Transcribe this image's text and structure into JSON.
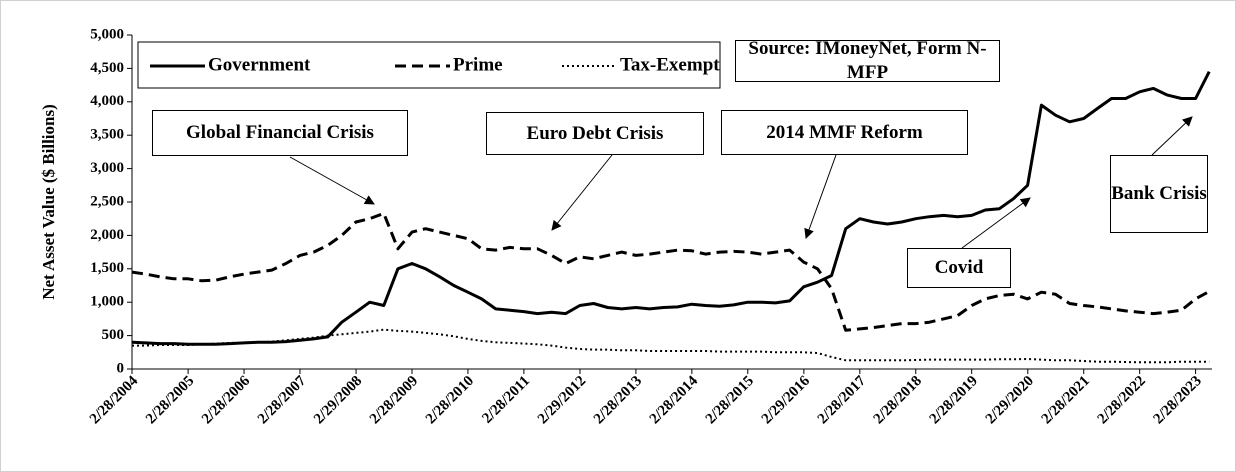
{
  "chart_data": {
    "type": "line",
    "y_label": "Net Asset Value ($ Billions)",
    "source": "Source: IMoneyNet, Form N-MFP",
    "annotations": [
      "Global Financial Crisis",
      "Euro Debt Crisis",
      "2014 MMF Reform",
      "Covid",
      "Bank Crisis"
    ],
    "x": [
      "2004-02",
      "2004-05",
      "2004-08",
      "2004-11",
      "2005-02",
      "2005-05",
      "2005-08",
      "2005-11",
      "2006-02",
      "2006-05",
      "2006-08",
      "2006-11",
      "2007-02",
      "2007-05",
      "2007-08",
      "2007-11",
      "2008-02",
      "2008-05",
      "2008-08",
      "2008-11",
      "2009-02",
      "2009-05",
      "2009-08",
      "2009-11",
      "2010-02",
      "2010-05",
      "2010-08",
      "2010-11",
      "2011-02",
      "2011-05",
      "2011-08",
      "2011-11",
      "2012-02",
      "2012-05",
      "2012-08",
      "2012-11",
      "2013-02",
      "2013-05",
      "2013-08",
      "2013-11",
      "2014-02",
      "2014-05",
      "2014-08",
      "2014-11",
      "2015-02",
      "2015-05",
      "2015-08",
      "2015-11",
      "2016-02",
      "2016-05",
      "2016-08",
      "2016-11",
      "2017-02",
      "2017-05",
      "2017-08",
      "2017-11",
      "2018-02",
      "2018-05",
      "2018-08",
      "2018-11",
      "2019-02",
      "2019-05",
      "2019-08",
      "2019-11",
      "2020-02",
      "2020-05",
      "2020-08",
      "2020-11",
      "2021-02",
      "2021-05",
      "2021-08",
      "2021-11",
      "2022-02",
      "2022-05",
      "2022-08",
      "2022-11",
      "2023-02",
      "2023-05"
    ],
    "series": [
      {
        "name": "Government",
        "color": "#000000",
        "style": "solid",
        "values": [
          400,
          390,
          380,
          380,
          370,
          370,
          370,
          380,
          390,
          400,
          400,
          410,
          430,
          450,
          480,
          700,
          850,
          1000,
          950,
          1500,
          1580,
          1500,
          1380,
          1250,
          1150,
          1050,
          900,
          880,
          860,
          830,
          850,
          830,
          950,
          980,
          920,
          900,
          920,
          900,
          920,
          930,
          970,
          950,
          940,
          960,
          1000,
          1000,
          990,
          1020,
          1230,
          1300,
          1400,
          2100,
          2250,
          2200,
          2170,
          2200,
          2250,
          2280,
          2300,
          2280,
          2300,
          2380,
          2400,
          2550,
          2750,
          3950,
          3800,
          3700,
          3750,
          3900,
          4050,
          4050,
          4150,
          4200,
          4100,
          4050,
          4050,
          4450
        ]
      },
      {
        "name": "Prime",
        "color": "#000000",
        "style": "dashed",
        "values": [
          1450,
          1420,
          1380,
          1350,
          1350,
          1320,
          1330,
          1380,
          1420,
          1450,
          1480,
          1580,
          1700,
          1750,
          1850,
          2000,
          2200,
          2250,
          2330,
          1800,
          2050,
          2100,
          2050,
          2000,
          1950,
          1800,
          1780,
          1820,
          1800,
          1800,
          1700,
          1580,
          1680,
          1650,
          1700,
          1750,
          1700,
          1720,
          1750,
          1780,
          1770,
          1720,
          1750,
          1760,
          1750,
          1720,
          1750,
          1780,
          1600,
          1500,
          1200,
          580,
          600,
          620,
          650,
          680,
          680,
          700,
          750,
          800,
          950,
          1050,
          1100,
          1120,
          1050,
          1150,
          1120,
          980,
          950,
          930,
          900,
          870,
          850,
          830,
          850,
          880,
          1050,
          1160
        ]
      },
      {
        "name": "Tax-Exempt",
        "color": "#000000",
        "style": "dotted",
        "values": [
          350,
          350,
          360,
          360,
          360,
          370,
          380,
          390,
          390,
          400,
          410,
          430,
          450,
          470,
          500,
          520,
          540,
          560,
          590,
          570,
          560,
          540,
          520,
          490,
          450,
          420,
          400,
          390,
          380,
          370,
          350,
          320,
          300,
          290,
          290,
          280,
          280,
          270,
          270,
          270,
          270,
          270,
          260,
          260,
          260,
          260,
          250,
          250,
          250,
          240,
          180,
          130,
          130,
          130,
          130,
          130,
          135,
          140,
          140,
          140,
          140,
          140,
          145,
          145,
          150,
          140,
          130,
          130,
          120,
          110,
          110,
          105,
          100,
          100,
          100,
          110,
          110,
          110
        ]
      }
    ],
    "ylim": [
      0,
      5000
    ],
    "yticks": [
      0,
      500,
      {
        "value": 1000,
        "label": "1,000"
      },
      {
        "value": 1500,
        "label": "1,500"
      },
      {
        "value": 2000,
        "label": "2,000"
      },
      {
        "value": 2500,
        "label": "2,500"
      },
      {
        "value": 3000,
        "label": "3,000"
      },
      {
        "value": 3500,
        "label": "3,500"
      },
      {
        "value": 4000,
        "label": "4,000"
      },
      {
        "value": 4500,
        "label": "4,500"
      },
      {
        "value": 5000,
        "label": "5,000"
      }
    ],
    "xlim": [
      "2004-02-28",
      "2023-06-15"
    ],
    "xticks": [
      {
        "value": "2004-02-28",
        "label": "2/28/2004"
      },
      {
        "value": "2005-02-28",
        "label": "2/28/2005"
      },
      {
        "value": "2006-02-28",
        "label": "2/28/2006"
      },
      {
        "value": "2007-02-28",
        "label": "2/28/2007"
      },
      {
        "value": "2008-02-29",
        "label": "2/29/2008"
      },
      {
        "value": "2009-02-28",
        "label": "2/28/2009"
      },
      {
        "value": "2010-02-28",
        "label": "2/28/2010"
      },
      {
        "value": "2011-02-28",
        "label": "2/28/2011"
      },
      {
        "value": "2012-02-29",
        "label": "2/29/2012"
      },
      {
        "value": "2013-02-28",
        "label": "2/28/2013"
      },
      {
        "value": "2014-02-28",
        "label": "2/28/2014"
      },
      {
        "value": "2015-02-28",
        "label": "2/28/2015"
      },
      {
        "value": "2016-02-29",
        "label": "2/29/2016"
      },
      {
        "value": "2017-02-28",
        "label": "2/28/2017"
      },
      {
        "value": "2018-02-28",
        "label": "2/28/2018"
      },
      {
        "value": "2019-02-28",
        "label": "2/28/2019"
      },
      {
        "value": "2020-02-29",
        "label": "2/29/2020"
      },
      {
        "value": "2021-02-28",
        "label": "2/28/2021"
      },
      {
        "value": "2022-02-28",
        "label": "2/28/2022"
      },
      {
        "value": "2023-02-28",
        "label": "2/28/2023"
      }
    ],
    "grid": false
  }
}
